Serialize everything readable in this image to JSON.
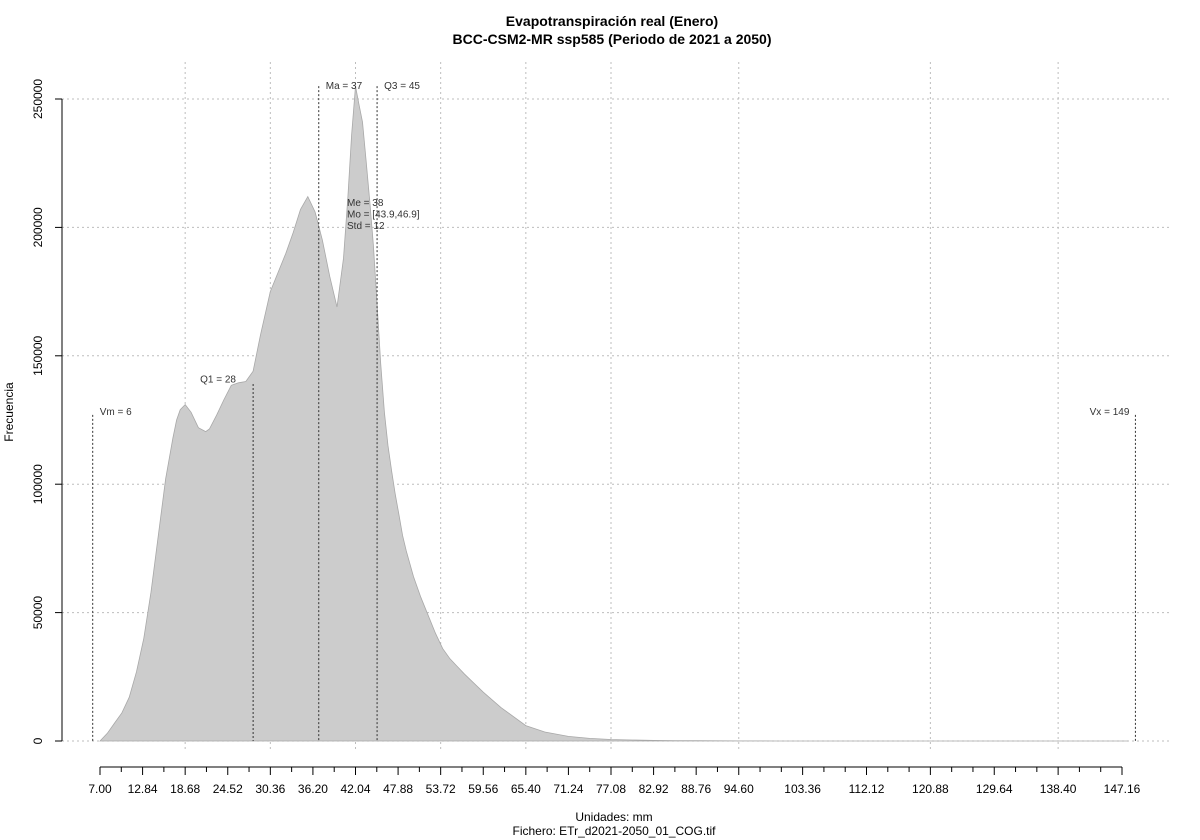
{
  "chart_data": {
    "type": "area",
    "title": "Evapotranspiración real (Enero)",
    "subtitle": "BCC-CSM2-MR ssp585 (Periodo de 2021 a 2050)",
    "xlabel": "Unidades: mm",
    "caption": "Fichero: ETr_d2021-2050_01_COG.tif",
    "ylabel": "Frecuencia",
    "xlim": [
      5.0,
      152.0
    ],
    "ylim": [
      0,
      262000
    ],
    "grid": true,
    "x_ticks": [
      "7.00",
      "12.84",
      "18.68",
      "24.52",
      "30.36",
      "36.20",
      "42.04",
      "47.88",
      "53.72",
      "59.56",
      "65.40",
      "71.24",
      "77.08",
      "82.92",
      "88.76",
      "94.60",
      "103.36",
      "112.12",
      "120.88",
      "129.64",
      "138.40",
      "147.16"
    ],
    "x_minor_ticks": [
      9.92,
      15.76,
      21.6,
      27.44,
      33.28,
      39.12,
      44.96,
      50.8,
      56.64,
      62.48,
      68.32,
      74.16,
      80.0,
      85.84,
      91.68,
      97.52,
      100.44,
      106.28,
      109.2,
      115.04,
      117.96,
      123.8,
      126.72,
      132.56,
      135.48,
      141.32,
      144.24
    ],
    "y_ticks": [
      0,
      50000,
      100000,
      150000,
      200000,
      250000
    ],
    "y_tick_labels": [
      "0",
      "50000",
      "100000",
      "150000",
      "200000",
      "250000"
    ],
    "series": [
      {
        "x": [
          7.0,
          8.0,
          9.0,
          10.0,
          11.0,
          12.0,
          13.0,
          14.0,
          15.0,
          16.0,
          17.0,
          17.5,
          18.0,
          18.68,
          19.5,
          20.5,
          21.5,
          22.0,
          23.0,
          24.0,
          25.0,
          26.0,
          27.0,
          28.0,
          29.0,
          30.36,
          31.5,
          32.5,
          33.5,
          34.5,
          35.5,
          36.5,
          37.5,
          38.5,
          39.5,
          40.4,
          41.0,
          41.5,
          42.04,
          42.5,
          43.0,
          43.5,
          44.0,
          44.5,
          45.0,
          45.5,
          46.0,
          46.5,
          47.0,
          47.5,
          48.0,
          48.5,
          49.0,
          50.0,
          51.0,
          52.0,
          53.0,
          54.0,
          55.0,
          56.0,
          57.0,
          59.56,
          62.0,
          65.4,
          68.0,
          71.24,
          74.16,
          77.08,
          80.0,
          82.92,
          85.84,
          88.76,
          91.68,
          94.6,
          100.0,
          110.0,
          120.0,
          130.0,
          140.0,
          148.0
        ],
        "y": [
          0,
          3000,
          7000,
          11000,
          17000,
          27000,
          40000,
          58000,
          80000,
          102000,
          118000,
          125000,
          129000,
          131000,
          128000,
          122000,
          120500,
          121500,
          127000,
          133000,
          138500,
          139500,
          140000,
          144000,
          158000,
          175000,
          183000,
          190000,
          198000,
          207000,
          212000,
          206000,
          195000,
          181000,
          169000,
          188000,
          212000,
          236000,
          255000,
          248000,
          241000,
          226000,
          210000,
          193000,
          170000,
          147000,
          128000,
          115000,
          105000,
          96000,
          88000,
          80000,
          74000,
          64000,
          56000,
          49000,
          42000,
          36000,
          32000,
          29000,
          26000,
          19000,
          13000,
          6000,
          3500,
          1800,
          1000,
          600,
          400,
          250,
          150,
          100,
          60,
          30,
          15,
          8,
          4,
          2,
          1,
          0
        ],
        "color": "#cccccc"
      }
    ],
    "annotations": [
      {
        "label": "Vm = 6",
        "x": 6.0,
        "y": 127000,
        "line_to": 127000
      },
      {
        "label": "Q1 = 28",
        "x": 28.0,
        "y": 138000,
        "line_to": 139000
      },
      {
        "label": "Ma = 37",
        "x": 37.0,
        "y": 255000,
        "line_to": 255000
      },
      {
        "label": "Q3 = 45",
        "x": 45.0,
        "y": 255000,
        "line_to": 255000
      },
      {
        "label": "Vx = 149",
        "x": 149.0,
        "y": 127000,
        "line_to": 127000
      }
    ],
    "stats_labels": [
      "Me = 38",
      "Mo = [43.9,46.9]",
      "Std = 12"
    ]
  }
}
